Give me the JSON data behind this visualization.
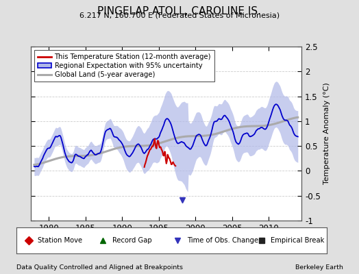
{
  "title": "PINGELAP ATOLL, CAROLINE IS.",
  "subtitle": "6.217 N, 160.700 E (Federated States of Micronesia)",
  "ylabel": "Temperature Anomaly (°C)",
  "xlabel_left": "Data Quality Controlled and Aligned at Breakpoints",
  "xlabel_right": "Berkeley Earth",
  "ylim": [
    -1.0,
    2.5
  ],
  "xlim": [
    1977.5,
    2014.5
  ],
  "yticks": [
    -1.0,
    -0.5,
    0.0,
    0.5,
    1.0,
    1.5,
    2.0,
    2.5
  ],
  "xticks": [
    1980,
    1985,
    1990,
    1995,
    2000,
    2005,
    2010
  ],
  "bg_color": "#e0e0e0",
  "plot_bg_color": "#ffffff",
  "regional_line_color": "#0000cc",
  "regional_fill_color": "#b0b8e8",
  "station_color": "#cc0000",
  "global_color": "#aaaaaa",
  "obs_change_color": "#3333bb",
  "legend_items": [
    "This Temperature Station (12-month average)",
    "Regional Expectation with 95% uncertainty",
    "Global Land (5-year average)"
  ]
}
